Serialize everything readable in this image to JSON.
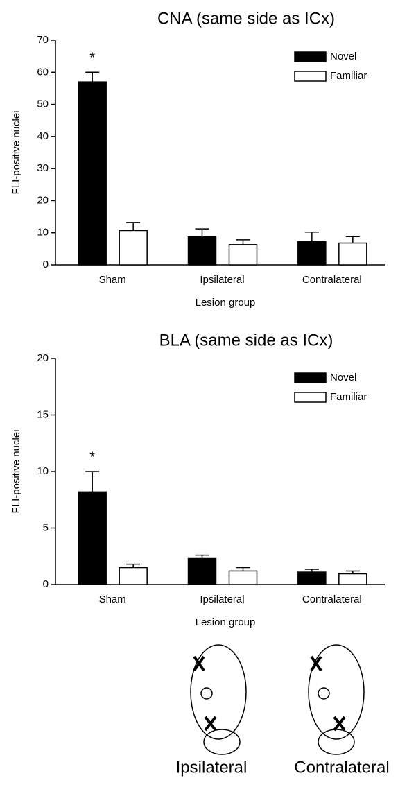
{
  "chart_data": [
    {
      "type": "bar",
      "title": "CNA (same side as ICx)",
      "x_label": "Lesion group",
      "y_label": "FLI-positive nuclei",
      "categories": [
        "Sham",
        "Ipsilateral",
        "Contralateral"
      ],
      "series": [
        {
          "name": "Novel",
          "color": "#000000",
          "values": [
            57,
            8.7,
            7.2
          ],
          "errors": [
            3,
            2.5,
            3
          ]
        },
        {
          "name": "Familiar",
          "color": "#ffffff",
          "values": [
            10.7,
            6.3,
            6.8
          ],
          "errors": [
            2.5,
            1.5,
            2
          ]
        }
      ],
      "annotations": [
        "*"
      ],
      "ylim": [
        0,
        70
      ],
      "yticks": [
        0,
        10,
        20,
        30,
        40,
        50,
        60,
        70
      ],
      "legend": "top-right"
    },
    {
      "type": "bar",
      "title": "BLA (same side as ICx)",
      "x_label": "Lesion group",
      "y_label": "FLI-positive nuclei",
      "categories": [
        "Sham",
        "Ipsilateral",
        "Contralateral"
      ],
      "series": [
        {
          "name": "Novel",
          "color": "#000000",
          "values": [
            8.2,
            2.3,
            1.1
          ],
          "errors": [
            1.8,
            0.3,
            0.25
          ]
        },
        {
          "name": "Familiar",
          "color": "#ffffff",
          "values": [
            1.5,
            1.2,
            0.95
          ],
          "errors": [
            0.3,
            0.3,
            0.25
          ]
        }
      ],
      "annotations": [
        "*"
      ],
      "ylim": [
        0,
        20
      ],
      "yticks": [
        0,
        5,
        10,
        15,
        20
      ],
      "legend": "top-right"
    }
  ],
  "diagram": {
    "labels": [
      "Ipsilateral",
      "Contralateral"
    ]
  }
}
